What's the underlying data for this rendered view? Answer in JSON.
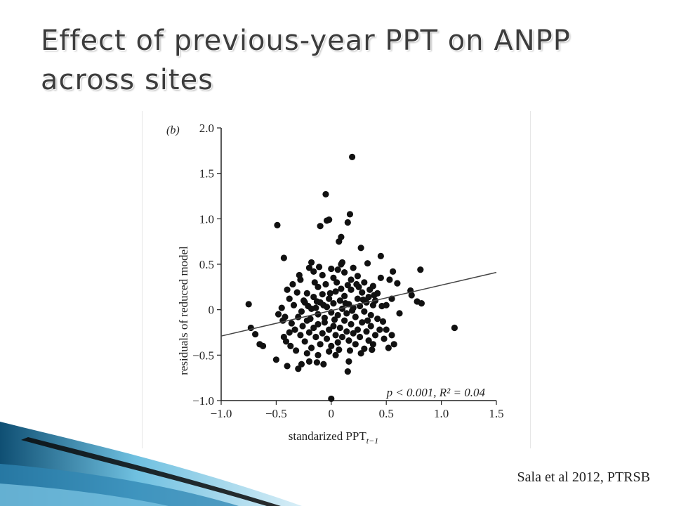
{
  "slide": {
    "title": "Effect of previous-year PPT on ANPP across sites",
    "citation": "Sala et al 2012, PTRSB"
  },
  "colors": {
    "title": "#3c3c3c",
    "points": "#111111",
    "axes": "#222222",
    "wave_dark": "#0f4f73",
    "wave_light": "#6fc0e0"
  },
  "chart_data": {
    "type": "scatter",
    "panel_label": "(b)",
    "ylabel": "residuals of reduced model",
    "xlabel": "standarized PPT",
    "xlabel_subscript": "t−1",
    "xlim": [
      -1.0,
      1.5
    ],
    "ylim": [
      -1.0,
      2.0
    ],
    "xticks": [
      -1.0,
      -0.5,
      0,
      0.5,
      1.0,
      1.5
    ],
    "xtick_labels": [
      "−1.0",
      "−0.5",
      "0",
      "0.5",
      "1.0",
      "1.5"
    ],
    "yticks": [
      -1.0,
      -0.5,
      0,
      0.5,
      1.0,
      1.5,
      2.0
    ],
    "ytick_labels": [
      "−1.0",
      "−0.5",
      "0",
      "0.5",
      "1.0",
      "1.5",
      "2.0"
    ],
    "annotation": "p < 0.001, R² = 0.04",
    "regression_line": {
      "x": [
        -1.0,
        1.5
      ],
      "y": [
        -0.29,
        0.41
      ]
    },
    "points": [
      [
        0.19,
        1.68
      ],
      [
        -0.05,
        1.27
      ],
      [
        0.17,
        1.05
      ],
      [
        0.15,
        0.96
      ],
      [
        -0.02,
        0.99
      ],
      [
        -0.04,
        0.98
      ],
      [
        -0.1,
        0.92
      ],
      [
        -0.49,
        0.93
      ],
      [
        0.09,
        0.8
      ],
      [
        0.07,
        0.75
      ],
      [
        0.27,
        0.68
      ],
      [
        0.45,
        0.59
      ],
      [
        -0.43,
        0.57
      ],
      [
        -0.18,
        0.52
      ],
      [
        0.1,
        0.52
      ],
      [
        0.33,
        0.51
      ],
      [
        0.81,
        0.44
      ],
      [
        0.56,
        0.42
      ],
      [
        0.6,
        0.29
      ],
      [
        0.53,
        0.33
      ],
      [
        0.72,
        0.21
      ],
      [
        0.5,
        0.05
      ],
      [
        0.55,
        0.12
      ],
      [
        0.62,
        -0.04
      ],
      [
        0.73,
        0.16
      ],
      [
        0.78,
        0.09
      ],
      [
        0.82,
        0.07
      ],
      [
        1.12,
        -0.2
      ],
      [
        -0.75,
        0.06
      ],
      [
        -0.73,
        -0.2
      ],
      [
        -0.69,
        -0.27
      ],
      [
        -0.65,
        -0.38
      ],
      [
        -0.62,
        -0.4
      ],
      [
        -0.48,
        -0.05
      ],
      [
        -0.44,
        -0.12
      ],
      [
        -0.43,
        -0.3
      ],
      [
        -0.5,
        -0.55
      ],
      [
        -0.4,
        -0.62
      ],
      [
        -0.3,
        -0.65
      ],
      [
        -0.27,
        -0.6
      ],
      [
        -0.2,
        -0.57
      ],
      [
        -0.13,
        -0.58
      ],
      [
        -0.07,
        -0.6
      ],
      [
        0.16,
        -0.57
      ],
      [
        0.15,
        -0.68
      ],
      [
        0.04,
        -0.5
      ],
      [
        0.5,
        -0.22
      ],
      [
        0.57,
        -0.38
      ],
      [
        0.55,
        -0.28
      ],
      [
        0.38,
        -0.38
      ],
      [
        0.3,
        -0.43
      ],
      [
        0.47,
        -0.13
      ],
      [
        0.0,
        -0.98
      ],
      [
        -0.35,
        0.28
      ],
      [
        -0.28,
        0.33
      ],
      [
        -0.22,
        0.18
      ],
      [
        -0.16,
        0.42
      ],
      [
        -0.12,
        0.25
      ],
      [
        -0.08,
        0.38
      ],
      [
        0.02,
        0.35
      ],
      [
        0.06,
        0.44
      ],
      [
        0.12,
        0.41
      ],
      [
        0.18,
        0.33
      ],
      [
        0.24,
        0.37
      ],
      [
        0.3,
        0.3
      ],
      [
        0.38,
        0.26
      ],
      [
        0.42,
        0.18
      ],
      [
        0.45,
        0.35
      ],
      [
        -0.38,
        0.12
      ],
      [
        -0.34,
        0.05
      ],
      [
        -0.31,
        0.19
      ],
      [
        -0.27,
        -0.02
      ],
      [
        -0.25,
        0.1
      ],
      [
        -0.21,
        0.04
      ],
      [
        -0.19,
        -0.1
      ],
      [
        -0.16,
        0.14
      ],
      [
        -0.14,
        0.02
      ],
      [
        -0.12,
        -0.05
      ],
      [
        -0.1,
        0.08
      ],
      [
        -0.08,
        0.17
      ],
      [
        -0.06,
        -0.09
      ],
      [
        -0.04,
        0.03
      ],
      [
        -0.02,
        0.12
      ],
      [
        0.0,
        -0.03
      ],
      [
        0.02,
        0.07
      ],
      [
        0.04,
        0.2
      ],
      [
        0.06,
        -0.06
      ],
      [
        0.08,
        0.1
      ],
      [
        0.1,
        0.01
      ],
      [
        0.12,
        0.15
      ],
      [
        0.14,
        -0.04
      ],
      [
        0.16,
        0.06
      ],
      [
        0.18,
        0.22
      ],
      [
        0.2,
        0.02
      ],
      [
        0.22,
        -0.08
      ],
      [
        0.24,
        0.12
      ],
      [
        0.26,
        0.04
      ],
      [
        0.28,
        0.19
      ],
      [
        0.3,
        -0.02
      ],
      [
        0.32,
        0.08
      ],
      [
        0.34,
        0.14
      ],
      [
        0.36,
        -0.06
      ],
      [
        0.38,
        0.05
      ],
      [
        0.4,
        0.1
      ],
      [
        -0.36,
        -0.15
      ],
      [
        -0.33,
        -0.22
      ],
      [
        -0.3,
        -0.08
      ],
      [
        -0.28,
        -0.28
      ],
      [
        -0.26,
        -0.18
      ],
      [
        -0.24,
        -0.35
      ],
      [
        -0.22,
        -0.12
      ],
      [
        -0.2,
        -0.25
      ],
      [
        -0.18,
        -0.42
      ],
      [
        -0.16,
        -0.2
      ],
      [
        -0.14,
        -0.3
      ],
      [
        -0.12,
        -0.16
      ],
      [
        -0.1,
        -0.38
      ],
      [
        -0.08,
        -0.26
      ],
      [
        -0.06,
        -0.14
      ],
      [
        -0.04,
        -0.32
      ],
      [
        -0.02,
        -0.22
      ],
      [
        0.0,
        -0.4
      ],
      [
        0.02,
        -0.18
      ],
      [
        0.04,
        -0.28
      ],
      [
        0.06,
        -0.36
      ],
      [
        0.08,
        -0.2
      ],
      [
        0.1,
        -0.3
      ],
      [
        0.12,
        -0.12
      ],
      [
        0.14,
        -0.24
      ],
      [
        0.16,
        -0.34
      ],
      [
        0.18,
        -0.16
      ],
      [
        0.2,
        -0.26
      ],
      [
        0.22,
        -0.38
      ],
      [
        0.24,
        -0.22
      ],
      [
        0.26,
        -0.3
      ],
      [
        0.28,
        -0.14
      ],
      [
        0.32,
        -0.24
      ],
      [
        0.34,
        -0.34
      ],
      [
        0.36,
        -0.18
      ],
      [
        0.4,
        -0.28
      ],
      [
        0.42,
        -0.1
      ],
      [
        0.44,
        -0.22
      ],
      [
        -0.45,
        0.02
      ],
      [
        -0.42,
        -0.08
      ],
      [
        -0.4,
        0.22
      ],
      [
        -0.38,
        -0.25
      ],
      [
        -0.15,
        0.3
      ],
      [
        -0.05,
        0.28
      ],
      [
        0.05,
        0.3
      ],
      [
        0.15,
        0.27
      ],
      [
        0.25,
        0.25
      ],
      [
        0.35,
        0.22
      ],
      [
        -0.29,
        0.38
      ],
      [
        -0.2,
        0.46
      ],
      [
        -0.11,
        0.47
      ],
      [
        0.0,
        0.45
      ],
      [
        0.09,
        0.5
      ],
      [
        0.2,
        0.46
      ],
      [
        -0.32,
        -0.45
      ],
      [
        -0.22,
        -0.48
      ],
      [
        -0.12,
        -0.5
      ],
      [
        -0.02,
        -0.46
      ],
      [
        0.07,
        -0.44
      ],
      [
        0.17,
        -0.45
      ],
      [
        0.27,
        -0.48
      ],
      [
        0.37,
        -0.44
      ],
      [
        -0.24,
        0.08
      ],
      [
        -0.18,
        0.01
      ],
      [
        -0.13,
        0.09
      ],
      [
        -0.07,
        0.05
      ],
      [
        -0.01,
        0.18
      ],
      [
        0.03,
        -0.11
      ],
      [
        0.09,
        0.23
      ],
      [
        0.13,
        0.07
      ],
      [
        0.19,
        -0.01
      ],
      [
        0.23,
        0.28
      ],
      [
        0.29,
        0.11
      ],
      [
        0.33,
        -0.12
      ],
      [
        0.39,
        0.16
      ],
      [
        0.46,
        0.04
      ],
      [
        -0.41,
        -0.35
      ],
      [
        -0.37,
        -0.4
      ],
      [
        0.48,
        -0.32
      ],
      [
        0.52,
        -0.42
      ]
    ]
  }
}
